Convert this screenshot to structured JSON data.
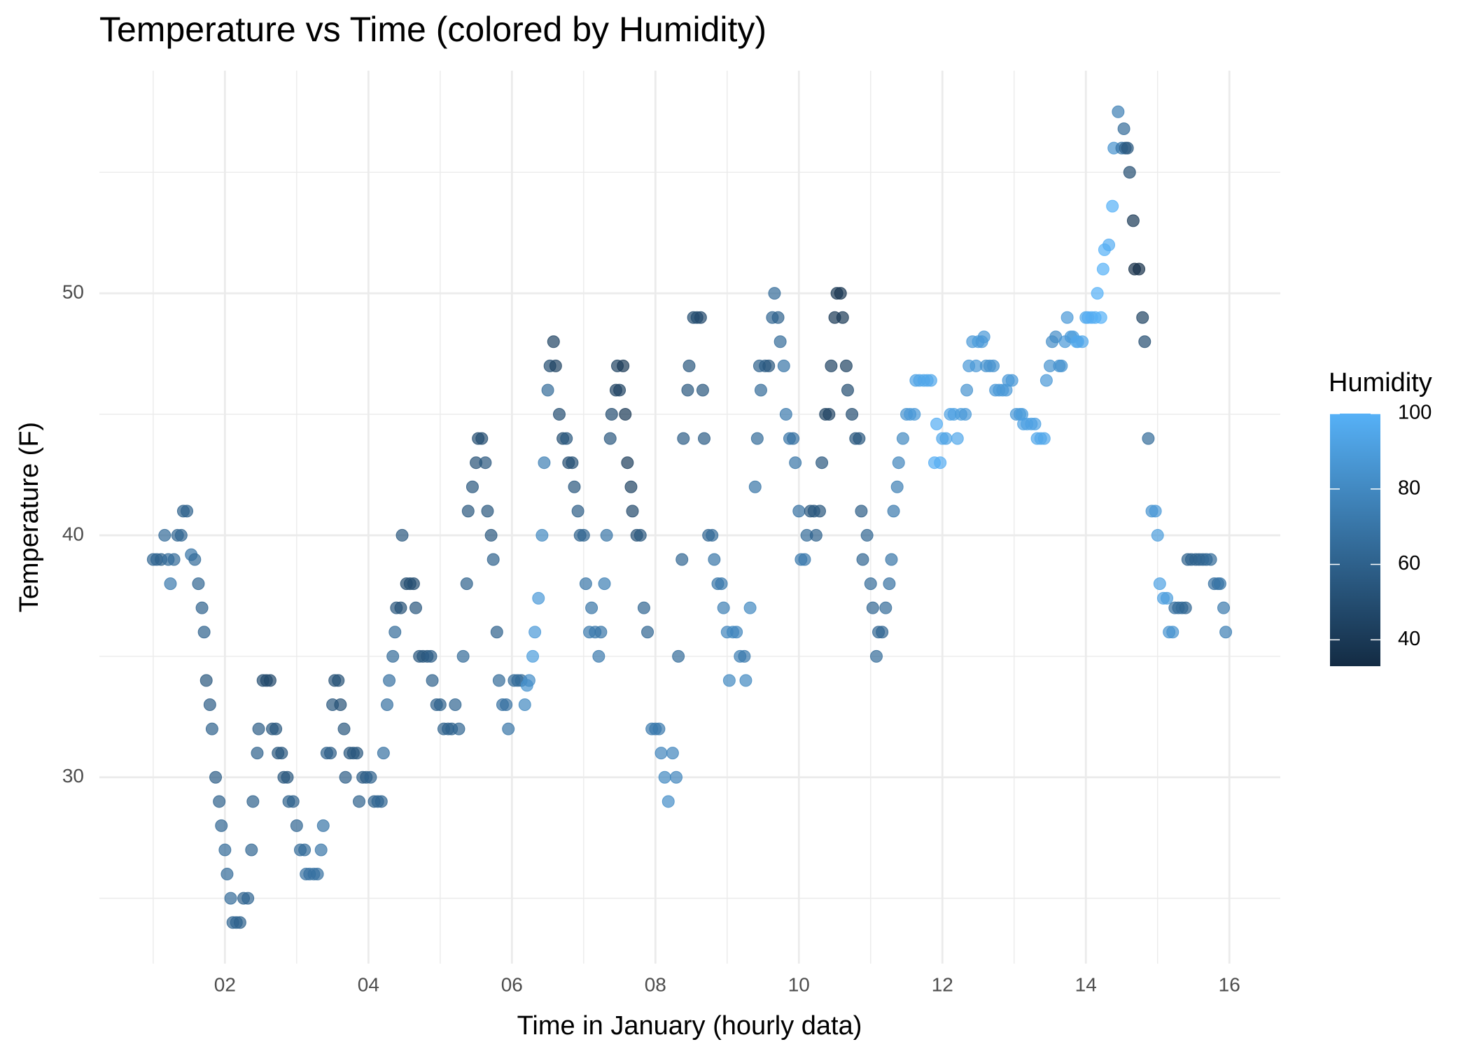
{
  "chart_data": {
    "type": "scatter",
    "title": "Temperature vs Time (colored by Humidity)",
    "x_label": "Time in January (hourly data)",
    "y_label": "Temperature (F)",
    "xlim": [
      0.25,
      16.71
    ],
    "ylim": [
      22.3,
      59.2
    ],
    "xticks": [
      {
        "value": 2,
        "label": "02"
      },
      {
        "value": 4,
        "label": "04"
      },
      {
        "value": 6,
        "label": "06"
      },
      {
        "value": 8,
        "label": "08"
      },
      {
        "value": 10,
        "label": "10"
      },
      {
        "value": 12,
        "label": "12"
      },
      {
        "value": 14,
        "label": "14"
      },
      {
        "value": 16,
        "label": "16"
      }
    ],
    "yticks": [
      30,
      40,
      50
    ],
    "minor_xticks": [
      1,
      3,
      5,
      7,
      9,
      11,
      13,
      15
    ],
    "minor_yticks": [
      25,
      35,
      45,
      55
    ],
    "grid": true,
    "colorbar": {
      "title": "Humidity",
      "lim": [
        33,
        100
      ],
      "ticks": [
        40,
        60,
        80,
        100
      ],
      "low": "#132B43",
      "high": "#56B1F7"
    },
    "x": [
      1.0,
      1.05,
      1.11,
      1.16,
      1.21,
      1.24,
      1.29,
      1.34,
      1.39,
      1.42,
      1.47,
      1.53,
      1.58,
      1.63,
      1.68,
      1.71,
      1.74,
      1.79,
      1.82,
      1.87,
      1.92,
      1.95,
      2.0,
      2.03,
      2.08,
      2.11,
      2.16,
      2.21,
      2.26,
      2.32,
      2.37,
      2.39,
      2.45,
      2.47,
      2.53,
      2.58,
      2.63,
      2.66,
      2.71,
      2.74,
      2.79,
      2.82,
      2.87,
      2.89,
      2.95,
      3.0,
      3.05,
      3.11,
      3.13,
      3.18,
      3.24,
      3.29,
      3.34,
      3.37,
      3.42,
      3.47,
      3.5,
      3.53,
      3.58,
      3.61,
      3.66,
      3.68,
      3.74,
      3.79,
      3.84,
      3.87,
      3.92,
      3.97,
      4.03,
      4.08,
      4.13,
      4.18,
      4.21,
      4.26,
      4.29,
      4.34,
      4.37,
      4.39,
      4.45,
      4.47,
      4.53,
      4.58,
      4.63,
      4.66,
      4.71,
      4.76,
      4.82,
      4.87,
      4.89,
      4.95,
      5.0,
      5.05,
      5.11,
      5.16,
      5.21,
      5.26,
      5.32,
      5.37,
      5.39,
      5.45,
      5.5,
      5.53,
      5.58,
      5.63,
      5.66,
      5.71,
      5.74,
      5.79,
      5.82,
      5.87,
      5.92,
      5.95,
      6.03,
      6.08,
      6.13,
      6.18,
      6.21,
      6.24,
      6.29,
      6.32,
      6.37,
      6.42,
      6.45,
      6.5,
      6.53,
      6.58,
      6.61,
      6.66,
      6.71,
      6.76,
      6.79,
      6.84,
      6.87,
      6.92,
      6.95,
      7.0,
      7.03,
      7.08,
      7.11,
      7.16,
      7.21,
      7.24,
      7.29,
      7.32,
      7.37,
      7.39,
      7.45,
      7.47,
      7.5,
      7.55,
      7.58,
      7.61,
      7.66,
      7.68,
      7.74,
      7.79,
      7.84,
      7.89,
      7.95,
      8.0,
      8.05,
      8.08,
      8.13,
      8.18,
      8.24,
      8.29,
      8.32,
      8.37,
      8.39,
      8.45,
      8.47,
      8.53,
      8.58,
      8.63,
      8.66,
      8.68,
      8.74,
      8.79,
      8.82,
      8.87,
      8.92,
      8.95,
      9.0,
      9.03,
      9.08,
      9.13,
      9.18,
      9.24,
      9.26,
      9.32,
      9.39,
      9.42,
      9.45,
      9.47,
      9.53,
      9.58,
      9.63,
      9.66,
      9.71,
      9.74,
      9.79,
      9.82,
      9.87,
      9.92,
      9.95,
      10.0,
      10.03,
      10.08,
      10.11,
      10.16,
      10.21,
      10.24,
      10.29,
      10.32,
      10.37,
      10.42,
      10.45,
      10.5,
      10.53,
      10.58,
      10.61,
      10.66,
      10.68,
      10.74,
      10.79,
      10.84,
      10.87,
      10.89,
      10.95,
      11.0,
      11.03,
      11.08,
      11.11,
      11.16,
      11.21,
      11.26,
      11.29,
      11.32,
      11.37,
      11.39,
      11.45,
      11.5,
      11.55,
      11.61,
      11.63,
      11.68,
      11.74,
      11.79,
      11.84,
      11.89,
      11.92,
      11.97,
      12.0,
      12.05,
      12.11,
      12.16,
      12.21,
      12.26,
      12.32,
      12.34,
      12.37,
      12.42,
      12.47,
      12.5,
      12.55,
      12.58,
      12.61,
      12.66,
      12.71,
      12.74,
      12.79,
      12.84,
      12.89,
      12.92,
      12.97,
      13.03,
      13.08,
      13.11,
      13.13,
      13.18,
      13.24,
      13.29,
      13.32,
      13.37,
      13.42,
      13.45,
      13.5,
      13.53,
      13.58,
      13.63,
      13.66,
      13.71,
      13.74,
      13.79,
      13.82,
      13.87,
      13.89,
      13.95,
      14.0,
      14.03,
      14.08,
      14.13,
      14.16,
      14.21,
      14.24,
      14.26,
      14.32,
      14.37,
      14.39,
      14.45,
      14.5,
      14.53,
      14.55,
      14.58,
      14.61,
      14.66,
      14.68,
      14.74,
      14.79,
      14.82,
      14.87,
      14.92,
      14.97,
      15.0,
      15.03,
      15.08,
      15.13,
      15.16,
      15.21,
      15.24,
      15.29,
      15.34,
      15.39,
      15.42,
      15.47,
      15.53,
      15.58,
      15.63,
      15.68,
      15.74,
      15.79,
      15.84,
      15.87,
      15.92,
      15.95
    ],
    "values": [
      39,
      39,
      39,
      40,
      39,
      38,
      39,
      40,
      40,
      41,
      41,
      39.2,
      39,
      38,
      37,
      36,
      34,
      33,
      32,
      30,
      29,
      28,
      27,
      26,
      25,
      24,
      24,
      24,
      25,
      25,
      27,
      29,
      31,
      32,
      34,
      34,
      34,
      32,
      32,
      31,
      31,
      30,
      30,
      29,
      29,
      28,
      27,
      27,
      26,
      26,
      26,
      26,
      27,
      28,
      31,
      31,
      33,
      34,
      34,
      33,
      32,
      30,
      31,
      31,
      31,
      29,
      30,
      30,
      30,
      29,
      29,
      29,
      31,
      33,
      34,
      35,
      36,
      37,
      37,
      40,
      38,
      38,
      38,
      37,
      35,
      35,
      35,
      35,
      34,
      33,
      33,
      32,
      32,
      32,
      33,
      32,
      35,
      38,
      41,
      42,
      43,
      44,
      44,
      43,
      41,
      40,
      39,
      36,
      34,
      33,
      33,
      32,
      34,
      34,
      34,
      33,
      33.8,
      34,
      35,
      36,
      37.4,
      40,
      43,
      46,
      47,
      48,
      47,
      45,
      44,
      44,
      43,
      43,
      42,
      41,
      40,
      40,
      38,
      36,
      37,
      36,
      35,
      36,
      38,
      40,
      44,
      45,
      46,
      47,
      46,
      47,
      45,
      43,
      42,
      41,
      40,
      40,
      37,
      36,
      32,
      32,
      32,
      31,
      30,
      29,
      31,
      30,
      35,
      39,
      44,
      46,
      47,
      49,
      49,
      49,
      46,
      44,
      40,
      40,
      39,
      38,
      38,
      37,
      36,
      34,
      36,
      36,
      35,
      35,
      34,
      37,
      42,
      44,
      47,
      46,
      47,
      47,
      49,
      50,
      49,
      48,
      47,
      45,
      44,
      44,
      43,
      41,
      39,
      39,
      40,
      41,
      41,
      40,
      41,
      43,
      45,
      45,
      47,
      49,
      50,
      50,
      49,
      47,
      46,
      45,
      44,
      44,
      41,
      39,
      40,
      38,
      37,
      35,
      36,
      36,
      37,
      38,
      39,
      41,
      42,
      43,
      44,
      45,
      45,
      45,
      46.4,
      46.4,
      46.4,
      46.4,
      46.4,
      43,
      44.6,
      43,
      44,
      44,
      45,
      45,
      44,
      45,
      45,
      46,
      47,
      48,
      47,
      48,
      48,
      48.2,
      47,
      47,
      47,
      46,
      46,
      46,
      46,
      46.4,
      46.4,
      45,
      45,
      45,
      44.6,
      44.6,
      44.6,
      44.6,
      44,
      44,
      44,
      46.4,
      47,
      48,
      48.2,
      47,
      47,
      48,
      49,
      48.2,
      48.2,
      48,
      48,
      48,
      49,
      49,
      49,
      49,
      50,
      49,
      51,
      51.8,
      52,
      53.6,
      56,
      57.5,
      56,
      56.8,
      56,
      56,
      55,
      53,
      51,
      51,
      49,
      48,
      44,
      41,
      41,
      40,
      38,
      37.4,
      37.4,
      36,
      36,
      37,
      37,
      37,
      37,
      39,
      39,
      39,
      39,
      39,
      39,
      39,
      38,
      38,
      38,
      37,
      36
    ],
    "color_values": [
      62,
      62,
      60,
      65,
      65,
      72,
      65,
      62,
      62,
      60,
      60,
      70,
      65,
      62,
      60,
      60,
      55,
      58,
      60,
      58,
      60,
      62,
      65,
      65,
      65,
      62,
      62,
      60,
      60,
      62,
      62,
      60,
      60,
      58,
      50,
      48,
      48,
      55,
      55,
      55,
      55,
      55,
      55,
      60,
      60,
      62,
      65,
      65,
      68,
      68,
      68,
      68,
      70,
      70,
      60,
      58,
      55,
      52,
      52,
      52,
      55,
      58,
      55,
      55,
      55,
      60,
      58,
      58,
      60,
      60,
      62,
      62,
      68,
      68,
      68,
      65,
      65,
      55,
      52,
      55,
      50,
      50,
      50,
      55,
      55,
      55,
      55,
      58,
      60,
      60,
      60,
      60,
      60,
      60,
      62,
      62,
      65,
      60,
      55,
      55,
      52,
      50,
      50,
      55,
      55,
      55,
      60,
      60,
      65,
      68,
      68,
      70,
      65,
      65,
      65,
      80,
      85,
      82,
      90,
      88,
      88,
      80,
      75,
      65,
      50,
      45,
      45,
      50,
      50,
      55,
      50,
      52,
      55,
      58,
      60,
      62,
      70,
      72,
      70,
      72,
      72,
      70,
      75,
      70,
      55,
      50,
      45,
      45,
      45,
      40,
      40,
      42,
      45,
      48,
      52,
      55,
      62,
      62,
      72,
      72,
      72,
      78,
      80,
      82,
      78,
      78,
      65,
      62,
      58,
      55,
      55,
      50,
      50,
      48,
      55,
      58,
      62,
      65,
      70,
      70,
      72,
      75,
      78,
      80,
      80,
      78,
      75,
      72,
      80,
      80,
      70,
      65,
      60,
      65,
      58,
      55,
      62,
      65,
      60,
      65,
      70,
      72,
      70,
      68,
      70,
      68,
      72,
      72,
      65,
      55,
      55,
      60,
      55,
      55,
      45,
      45,
      45,
      40,
      40,
      38,
      40,
      45,
      50,
      50,
      55,
      55,
      58,
      62,
      62,
      65,
      62,
      65,
      62,
      62,
      65,
      68,
      70,
      72,
      75,
      78,
      80,
      85,
      88,
      88,
      92,
      94,
      95,
      95,
      95,
      98,
      98,
      98,
      95,
      93,
      92,
      92,
      95,
      90,
      88,
      85,
      88,
      88,
      88,
      90,
      88,
      88,
      85,
      85,
      85,
      88,
      88,
      88,
      88,
      88,
      88,
      88,
      88,
      90,
      92,
      92,
      92,
      92,
      95,
      95,
      95,
      88,
      85,
      82,
      82,
      85,
      85,
      88,
      88,
      88,
      90,
      95,
      95,
      95,
      95,
      98,
      98,
      98,
      100,
      100,
      100,
      100,
      98,
      100,
      85,
      75,
      70,
      65,
      60,
      55,
      50,
      40,
      35,
      35,
      45,
      50,
      65,
      85,
      88,
      90,
      92,
      92,
      90,
      85,
      85,
      68,
      65,
      65,
      62,
      60,
      60,
      60,
      60,
      62,
      62,
      65,
      68,
      68,
      70,
      72,
      75
    ]
  }
}
